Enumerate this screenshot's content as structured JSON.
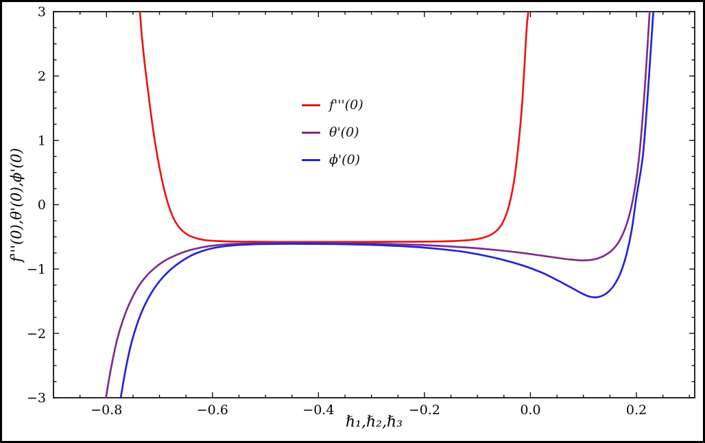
{
  "figure": {
    "background": "#ffffff",
    "border_color": "#000000"
  },
  "chart_data": {
    "type": "line",
    "title": "",
    "xlabel": "ℏ₁,ℏ₂,ℏ₃",
    "ylabel": "f'''(0),θ'(0),ϕ'(0)",
    "xlim": [
      -0.9,
      0.31
    ],
    "ylim": [
      -3,
      3
    ],
    "grid": false,
    "frame": true,
    "x_ticks": [
      -0.8,
      -0.6,
      -0.4,
      -0.2,
      0.0,
      0.2
    ],
    "x_tick_labels": [
      "−0.8",
      "−0.6",
      "−0.4",
      "−0.2",
      "0.0",
      "0.2"
    ],
    "y_ticks": [
      -3,
      -2,
      -1,
      0,
      1,
      2,
      3
    ],
    "y_tick_labels": [
      "−3",
      "−2",
      "−1",
      "0",
      "1",
      "2",
      "3"
    ],
    "x_minor_step": 0.05,
    "y_minor_step": 0.25,
    "legend": {
      "position": "upper-center",
      "items": [
        {
          "label": "f'''(0)",
          "color": "#ee1510"
        },
        {
          "label": "θ'(0)",
          "color": "#7d2d8d"
        },
        {
          "label": "ϕ'(0)",
          "color": "#2423da"
        }
      ]
    },
    "series": [
      {
        "id": "f-triple-prime",
        "name": "f'''(0)",
        "color": "#ee1510",
        "points": [
          [
            -0.737,
            3.0
          ],
          [
            -0.733,
            2.6
          ],
          [
            -0.728,
            2.2
          ],
          [
            -0.722,
            1.8
          ],
          [
            -0.716,
            1.4
          ],
          [
            -0.709,
            1.0
          ],
          [
            -0.701,
            0.62
          ],
          [
            -0.693,
            0.3
          ],
          [
            -0.684,
            0.02
          ],
          [
            -0.674,
            -0.2
          ],
          [
            -0.663,
            -0.35
          ],
          [
            -0.65,
            -0.45
          ],
          [
            -0.635,
            -0.51
          ],
          [
            -0.615,
            -0.55
          ],
          [
            -0.59,
            -0.565
          ],
          [
            -0.56,
            -0.572
          ],
          [
            -0.52,
            -0.576
          ],
          [
            -0.46,
            -0.578
          ],
          [
            -0.4,
            -0.578
          ],
          [
            -0.34,
            -0.578
          ],
          [
            -0.28,
            -0.577
          ],
          [
            -0.22,
            -0.575
          ],
          [
            -0.18,
            -0.572
          ],
          [
            -0.15,
            -0.566
          ],
          [
            -0.125,
            -0.556
          ],
          [
            -0.105,
            -0.54
          ],
          [
            -0.09,
            -0.515
          ],
          [
            -0.077,
            -0.478
          ],
          [
            -0.066,
            -0.42
          ],
          [
            -0.057,
            -0.34
          ],
          [
            -0.049,
            -0.22
          ],
          [
            -0.042,
            -0.06
          ],
          [
            -0.036,
            0.14
          ],
          [
            -0.03,
            0.42
          ],
          [
            -0.025,
            0.75
          ],
          [
            -0.02,
            1.15
          ],
          [
            -0.015,
            1.65
          ],
          [
            -0.011,
            2.2
          ],
          [
            -0.007,
            2.75
          ],
          [
            -0.004,
            3.0
          ]
        ]
      },
      {
        "id": "theta-prime",
        "name": "θ'(0)",
        "color": "#7d2d8d",
        "points": [
          [
            -0.801,
            -3.0
          ],
          [
            -0.795,
            -2.7
          ],
          [
            -0.788,
            -2.4
          ],
          [
            -0.78,
            -2.1
          ],
          [
            -0.77,
            -1.82
          ],
          [
            -0.758,
            -1.56
          ],
          [
            -0.744,
            -1.33
          ],
          [
            -0.728,
            -1.14
          ],
          [
            -0.71,
            -0.99
          ],
          [
            -0.69,
            -0.87
          ],
          [
            -0.668,
            -0.78
          ],
          [
            -0.644,
            -0.71
          ],
          [
            -0.618,
            -0.66
          ],
          [
            -0.59,
            -0.628
          ],
          [
            -0.56,
            -0.61
          ],
          [
            -0.52,
            -0.6
          ],
          [
            -0.47,
            -0.596
          ],
          [
            -0.42,
            -0.596
          ],
          [
            -0.37,
            -0.598
          ],
          [
            -0.32,
            -0.602
          ],
          [
            -0.27,
            -0.61
          ],
          [
            -0.22,
            -0.622
          ],
          [
            -0.17,
            -0.64
          ],
          [
            -0.12,
            -0.665
          ],
          [
            -0.07,
            -0.7
          ],
          [
            -0.02,
            -0.745
          ],
          [
            0.02,
            -0.79
          ],
          [
            0.05,
            -0.825
          ],
          [
            0.075,
            -0.852
          ],
          [
            0.095,
            -0.865
          ],
          [
            0.11,
            -0.862
          ],
          [
            0.125,
            -0.84
          ],
          [
            0.14,
            -0.79
          ],
          [
            0.155,
            -0.7
          ],
          [
            0.168,
            -0.56
          ],
          [
            0.18,
            -0.34
          ],
          [
            0.19,
            -0.05
          ],
          [
            0.199,
            0.35
          ],
          [
            0.207,
            0.9
          ],
          [
            0.214,
            1.6
          ],
          [
            0.22,
            2.35
          ],
          [
            0.225,
            3.0
          ]
        ]
      },
      {
        "id": "phi-prime",
        "name": "ϕ'(0)",
        "color": "#2423da",
        "points": [
          [
            -0.773,
            -3.0
          ],
          [
            -0.767,
            -2.7
          ],
          [
            -0.76,
            -2.4
          ],
          [
            -0.752,
            -2.12
          ],
          [
            -0.742,
            -1.85
          ],
          [
            -0.73,
            -1.6
          ],
          [
            -0.716,
            -1.38
          ],
          [
            -0.7,
            -1.19
          ],
          [
            -0.682,
            -1.03
          ],
          [
            -0.662,
            -0.9
          ],
          [
            -0.64,
            -0.79
          ],
          [
            -0.616,
            -0.712
          ],
          [
            -0.59,
            -0.662
          ],
          [
            -0.56,
            -0.632
          ],
          [
            -0.52,
            -0.615
          ],
          [
            -0.47,
            -0.608
          ],
          [
            -0.42,
            -0.608
          ],
          [
            -0.37,
            -0.612
          ],
          [
            -0.32,
            -0.62
          ],
          [
            -0.27,
            -0.634
          ],
          [
            -0.22,
            -0.655
          ],
          [
            -0.17,
            -0.69
          ],
          [
            -0.12,
            -0.74
          ],
          [
            -0.07,
            -0.82
          ],
          [
            -0.02,
            -0.93
          ],
          [
            0.02,
            -1.05
          ],
          [
            0.05,
            -1.17
          ],
          [
            0.075,
            -1.28
          ],
          [
            0.095,
            -1.37
          ],
          [
            0.11,
            -1.425
          ],
          [
            0.122,
            -1.44
          ],
          [
            0.134,
            -1.42
          ],
          [
            0.146,
            -1.36
          ],
          [
            0.158,
            -1.25
          ],
          [
            0.17,
            -1.06
          ],
          [
            0.181,
            -0.78
          ],
          [
            0.191,
            -0.4
          ],
          [
            0.2,
            0.12
          ],
          [
            0.212,
            0.75
          ],
          [
            0.22,
            1.55
          ],
          [
            0.227,
            2.4
          ],
          [
            0.232,
            3.0
          ]
        ]
      }
    ]
  }
}
